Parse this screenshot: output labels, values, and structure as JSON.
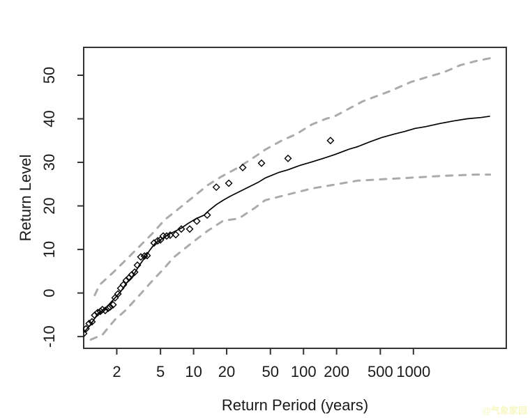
{
  "chart_data": {
    "type": "line",
    "title": "",
    "xlabel": "Return Period (years)",
    "ylabel": "Return Level",
    "x_scale": "log10",
    "grid": false,
    "legend": null,
    "x_ticks": [
      2,
      5,
      10,
      20,
      50,
      100,
      200,
      500,
      1000
    ],
    "y_ticks": [
      -10,
      0,
      10,
      20,
      30,
      40,
      50
    ],
    "x_range": [
      1,
      7000
    ],
    "y_range": [
      -12.7,
      56.4
    ],
    "series": [
      {
        "name": "upper-confidence-band",
        "style": "dashed",
        "color": "#ababab",
        "points": [
          [
            1.26,
            -0.5
          ],
          [
            1.4,
            1.9
          ],
          [
            1.87,
            4.8
          ],
          [
            2.44,
            7.7
          ],
          [
            3.22,
            10.7
          ],
          [
            4.19,
            13.6
          ],
          [
            5.45,
            16.8
          ],
          [
            7.19,
            19.2
          ],
          [
            9.64,
            21.8
          ],
          [
            13.5,
            24.8
          ],
          [
            17.8,
            26.7
          ],
          [
            24.2,
            28.5
          ],
          [
            33.4,
            30.7
          ],
          [
            44.7,
            32.9
          ],
          [
            62.3,
            34.9
          ],
          [
            86.1,
            36.5
          ],
          [
            119,
            38.7
          ],
          [
            160,
            40.0
          ],
          [
            193,
            40.6
          ],
          [
            345,
            44.0
          ],
          [
            620,
            46.4
          ],
          [
            960,
            48.5
          ],
          [
            1343,
            49.6
          ],
          [
            1902,
            50.7
          ],
          [
            2670,
            52.3
          ],
          [
            3750,
            53.3
          ],
          [
            4980,
            53.9
          ]
        ]
      },
      {
        "name": "lower-confidence-band",
        "style": "dashed",
        "color": "#ababab",
        "points": [
          [
            1.16,
            -10.7
          ],
          [
            1.48,
            -9.6
          ],
          [
            1.93,
            -6.1
          ],
          [
            2.4,
            -4.0
          ],
          [
            3.27,
            -0.3
          ],
          [
            4.07,
            2.4
          ],
          [
            5.22,
            5.3
          ],
          [
            6.67,
            8.3
          ],
          [
            9.64,
            11.5
          ],
          [
            13.3,
            14.2
          ],
          [
            18.6,
            16.6
          ],
          [
            25.7,
            17.1
          ],
          [
            35.9,
            19.5
          ],
          [
            44.7,
            21.3
          ],
          [
            119,
            24.0
          ],
          [
            311,
            25.8
          ],
          [
            833,
            26.4
          ],
          [
            1860,
            26.9
          ],
          [
            3700,
            27.2
          ],
          [
            4980,
            27.2
          ]
        ]
      },
      {
        "name": "fitted-return-level-curve",
        "style": "solid",
        "color": "#000000",
        "points": [
          [
            1.0,
            -9.1
          ],
          [
            1.16,
            -7.2
          ],
          [
            1.34,
            -4.8
          ],
          [
            1.55,
            -3.7
          ],
          [
            1.69,
            -2.7
          ],
          [
            1.93,
            -1.1
          ],
          [
            2.17,
            0.3
          ],
          [
            2.47,
            2.4
          ],
          [
            2.78,
            3.8
          ],
          [
            3.22,
            6.4
          ],
          [
            3.57,
            8.0
          ],
          [
            4.01,
            9.9
          ],
          [
            4.5,
            11.5
          ],
          [
            4.99,
            12.2
          ],
          [
            5.77,
            13.3
          ],
          [
            6.67,
            14.1
          ],
          [
            7.73,
            14.9
          ],
          [
            8.94,
            16.0
          ],
          [
            10.4,
            17.0
          ],
          [
            12.5,
            17.9
          ],
          [
            13.9,
            19.0
          ],
          [
            16.1,
            20.3
          ],
          [
            18.6,
            21.3
          ],
          [
            21.5,
            22.2
          ],
          [
            24.9,
            23.0
          ],
          [
            28.8,
            23.8
          ],
          [
            33.4,
            24.6
          ],
          [
            38.6,
            25.4
          ],
          [
            44.7,
            26.4
          ],
          [
            59.9,
            27.7
          ],
          [
            72.3,
            28.3
          ],
          [
            92.7,
            29.3
          ],
          [
            119,
            30.1
          ],
          [
            155,
            31.0
          ],
          [
            193,
            31.8
          ],
          [
            258,
            33.0
          ],
          [
            311,
            33.6
          ],
          [
            400,
            34.7
          ],
          [
            514,
            35.7
          ],
          [
            669,
            36.5
          ],
          [
            833,
            37.1
          ],
          [
            1037,
            37.8
          ],
          [
            1291,
            38.2
          ],
          [
            1725,
            38.9
          ],
          [
            2305,
            39.5
          ],
          [
            3080,
            40.0
          ],
          [
            4115,
            40.3
          ],
          [
            4980,
            40.6
          ]
        ]
      },
      {
        "name": "empirical-points",
        "style": "points-diamond",
        "color": "#000000",
        "points": [
          [
            1.0,
            -9.3
          ],
          [
            1.05,
            -8.2
          ],
          [
            1.12,
            -7.0
          ],
          [
            1.19,
            -6.6
          ],
          [
            1.26,
            -5.1
          ],
          [
            1.34,
            -4.5
          ],
          [
            1.42,
            -4.2
          ],
          [
            1.48,
            -3.8
          ],
          [
            1.57,
            -4.0
          ],
          [
            1.67,
            -3.5
          ],
          [
            1.74,
            -3.2
          ],
          [
            1.85,
            -2.7
          ],
          [
            1.93,
            -1.1
          ],
          [
            2.05,
            -0.2
          ],
          [
            2.17,
            1.1
          ],
          [
            2.3,
            1.9
          ],
          [
            2.44,
            2.9
          ],
          [
            2.59,
            3.5
          ],
          [
            2.74,
            4.2
          ],
          [
            2.91,
            4.8
          ],
          [
            3.08,
            6.4
          ],
          [
            3.31,
            8.3
          ],
          [
            3.57,
            8.5
          ],
          [
            3.78,
            8.6
          ],
          [
            4.37,
            11.5
          ],
          [
            4.71,
            12.0
          ],
          [
            4.99,
            12.2
          ],
          [
            5.29,
            13.1
          ],
          [
            5.69,
            13.1
          ],
          [
            6.12,
            13.3
          ],
          [
            6.88,
            13.4
          ],
          [
            7.73,
            14.7
          ],
          [
            9.22,
            14.7
          ],
          [
            10.7,
            16.5
          ],
          [
            13.3,
            17.9
          ],
          [
            16.1,
            24.3
          ],
          [
            20.9,
            25.2
          ],
          [
            28.0,
            28.8
          ],
          [
            41.5,
            29.8
          ],
          [
            72.3,
            30.9
          ],
          [
            176,
            35.0
          ]
        ]
      }
    ]
  },
  "watermark": {
    "text": "@气象家园",
    "color": "#f7f7c4"
  }
}
